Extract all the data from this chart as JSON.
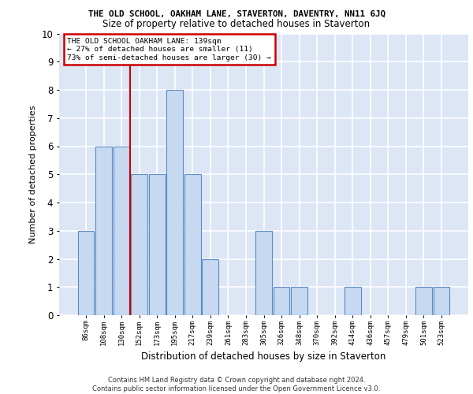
{
  "title": "THE OLD SCHOOL, OAKHAM LANE, STAVERTON, DAVENTRY, NN11 6JQ",
  "subtitle": "Size of property relative to detached houses in Staverton",
  "xlabel": "Distribution of detached houses by size in Staverton",
  "ylabel": "Number of detached properties",
  "categories": [
    "86sqm",
    "108sqm",
    "130sqm",
    "152sqm",
    "173sqm",
    "195sqm",
    "217sqm",
    "239sqm",
    "261sqm",
    "283sqm",
    "305sqm",
    "326sqm",
    "348sqm",
    "370sqm",
    "392sqm",
    "414sqm",
    "436sqm",
    "457sqm",
    "479sqm",
    "501sqm",
    "523sqm"
  ],
  "values": [
    3,
    6,
    6,
    5,
    5,
    8,
    5,
    2,
    0,
    0,
    3,
    1,
    1,
    0,
    0,
    1,
    0,
    0,
    0,
    1,
    1
  ],
  "bar_color": "#c6d9f0",
  "bar_edge_color": "#5a8ac6",
  "vline_x": 2.5,
  "annotation_text": "THE OLD SCHOOL OAKHAM LANE: 139sqm\n← 27% of detached houses are smaller (11)\n73% of semi-detached houses are larger (30) →",
  "annotation_box_color": "#ffffff",
  "annotation_box_edge": "#cc0000",
  "vline_color": "#cc0000",
  "ylim": [
    0,
    10
  ],
  "yticks": [
    0,
    1,
    2,
    3,
    4,
    5,
    6,
    7,
    8,
    9,
    10
  ],
  "footer_text": "Contains HM Land Registry data © Crown copyright and database right 2024.\nContains public sector information licensed under the Open Government Licence v3.0.",
  "bg_color": "#dce6f5",
  "grid_color": "#ffffff",
  "title_fontsize": 7.8,
  "subtitle_fontsize": 8.5
}
